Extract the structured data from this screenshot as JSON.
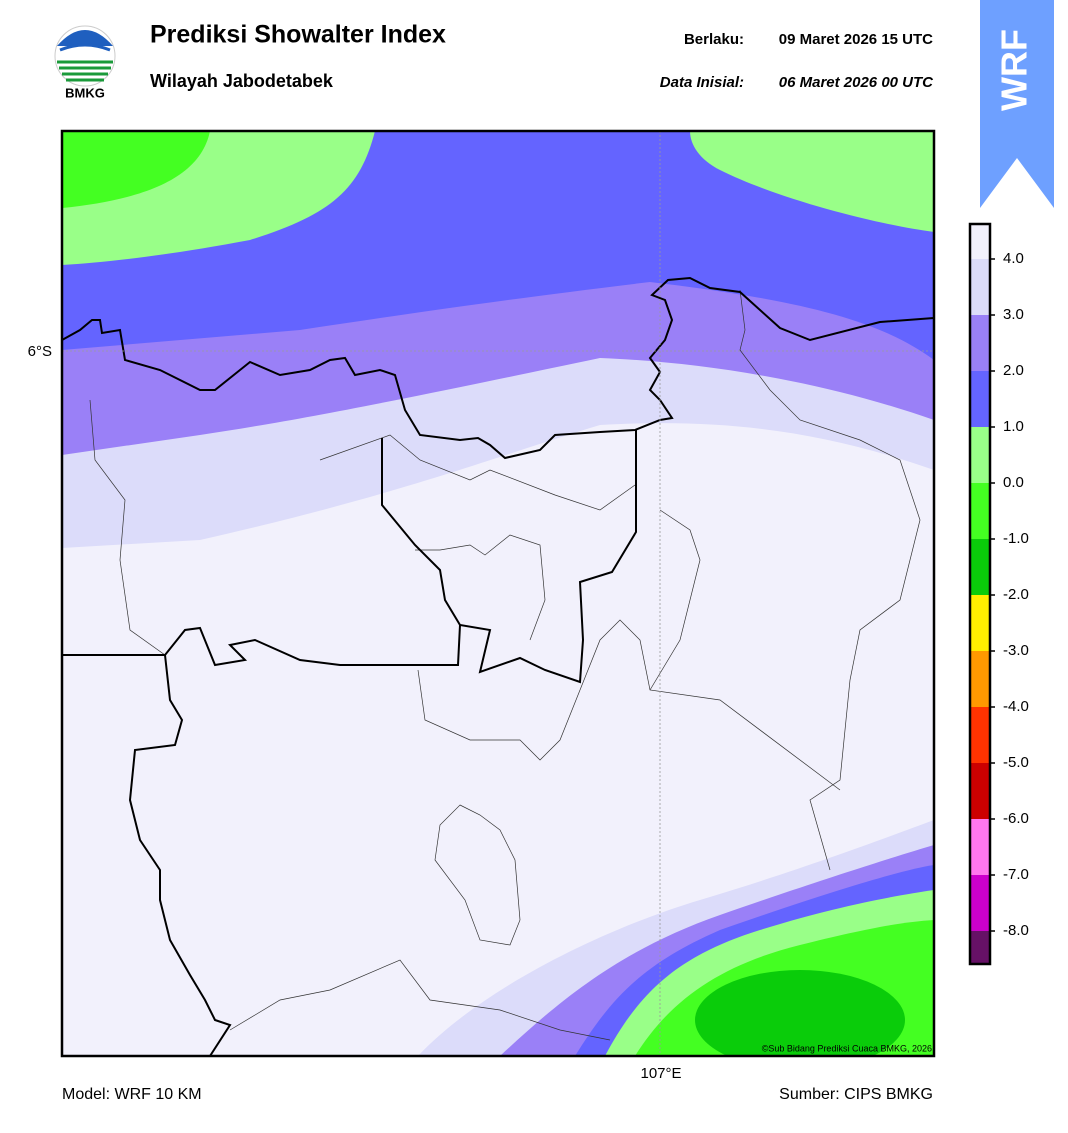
{
  "header": {
    "title": "Prediksi Showalter Index",
    "subtitle": "Wilayah Jabodetabek",
    "valid_label": "Berlaku:",
    "valid_time": "09 Maret 2026 15 UTC",
    "init_label": "Data Inisial:",
    "init_time": "06 Maret 2026 00 UTC",
    "logo_text": "BMKG",
    "badge": "WRF"
  },
  "map": {
    "lat_label": "6°S",
    "lon_label": "107°E",
    "credit": "©Sub Bidang Prediksi Cuaca BMKG, 2026"
  },
  "colorbar": {
    "labels": [
      "4.0",
      "3.0",
      "2.0",
      "1.0",
      "0.0",
      "-1.0",
      "-2.0",
      "-3.0",
      "-4.0",
      "-5.0",
      "-6.0",
      "-7.0",
      "-8.0"
    ],
    "colors": [
      "#f2f1fc",
      "#dcdcfa",
      "#9a80f7",
      "#6464ff",
      "#99ff88",
      "#44ff22",
      "#0acc0a",
      "#ffee00",
      "#ff9900",
      "#ff3300",
      "#cc0000",
      "#ff77ee",
      "#cc00cc",
      "#661166"
    ]
  },
  "footer": {
    "model": "Model: WRF 10 KM",
    "source": "Sumber: CIPS BMKG"
  }
}
